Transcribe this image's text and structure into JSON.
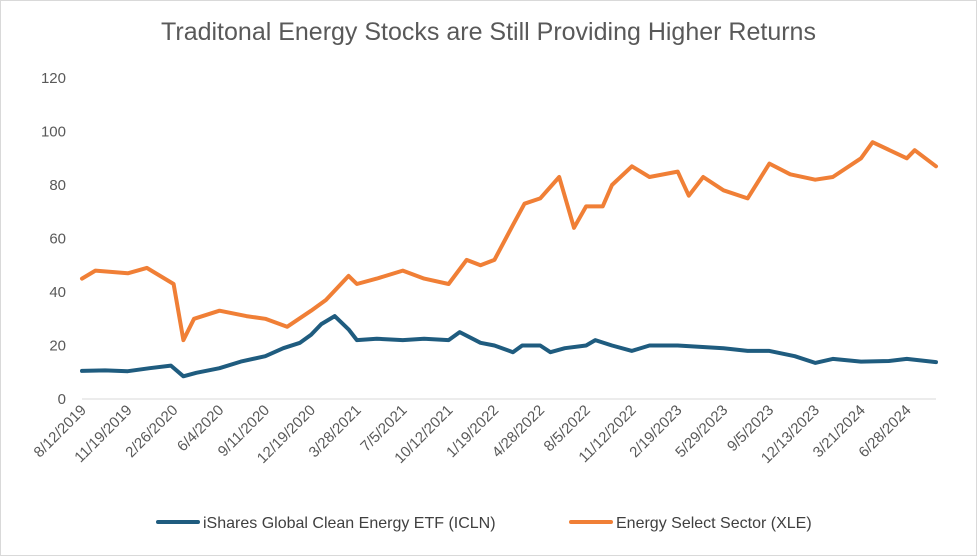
{
  "chart_data": {
    "type": "line",
    "title": "Traditonal Energy Stocks are Still Providing Higher Returns",
    "xlabel": "",
    "ylabel": "",
    "ylim": [
      0,
      120
    ],
    "y_ticks": [
      0,
      20,
      40,
      60,
      80,
      100,
      120
    ],
    "x_tick_labels": [
      "8/12/2019",
      "11/19/2019",
      "2/26/2020",
      "6/4/2020",
      "9/11/2020",
      "12/19/2020",
      "3/28/2021",
      "7/5/2021",
      "10/12/2021",
      "1/19/2022",
      "4/28/2022",
      "8/5/2022",
      "11/12/2022",
      "2/19/2023",
      "5/29/2023",
      "9/5/2023",
      "12/13/2023",
      "3/21/2024",
      "6/28/2024"
    ],
    "x_ticks": [
      "2019-08-12",
      "2019-11-19",
      "2020-02-26",
      "2020-06-04",
      "2020-09-11",
      "2020-12-19",
      "2021-03-28",
      "2021-07-05",
      "2021-10-12",
      "2022-01-19",
      "2022-04-28",
      "2022-08-05",
      "2022-11-12",
      "2023-02-19",
      "2023-05-29",
      "2023-09-05",
      "2023-12-13",
      "2024-03-21",
      "2024-06-28"
    ],
    "xlim": [
      "2019-08-12",
      "2024-08-30"
    ],
    "grid": false,
    "legend_position": "bottom",
    "colors": {
      "ICLN": "#1f5c7f",
      "XLE": "#f07f36"
    },
    "series": [
      {
        "name": "iShares Global Clean Energy ETF (ICLN)",
        "key": "ICLN",
        "x": [
          "2019-08-12",
          "2019-10-01",
          "2019-11-19",
          "2020-01-05",
          "2020-02-20",
          "2020-03-18",
          "2020-04-15",
          "2020-06-04",
          "2020-07-20",
          "2020-09-11",
          "2020-10-20",
          "2020-11-25",
          "2020-12-19",
          "2021-01-10",
          "2021-02-08",
          "2021-03-10",
          "2021-03-28",
          "2021-05-10",
          "2021-07-05",
          "2021-08-20",
          "2021-10-12",
          "2021-11-05",
          "2021-12-20",
          "2022-01-19",
          "2022-02-28",
          "2022-03-20",
          "2022-04-28",
          "2022-05-20",
          "2022-06-20",
          "2022-08-05",
          "2022-08-25",
          "2022-09-30",
          "2022-11-12",
          "2022-12-20",
          "2023-02-19",
          "2023-05-29",
          "2023-07-20",
          "2023-09-05",
          "2023-10-30",
          "2023-12-13",
          "2024-01-20",
          "2024-03-21",
          "2024-05-20",
          "2024-06-28",
          "2024-08-30"
        ],
        "y": [
          10.5,
          10.7,
          10.4,
          11.5,
          12.5,
          8.5,
          9.8,
          11.5,
          14,
          16,
          19,
          21,
          24,
          28,
          31,
          26,
          22,
          22.5,
          22,
          22.5,
          22,
          25,
          21,
          20,
          17.5,
          20,
          20,
          17.5,
          19,
          20,
          22,
          20,
          18,
          20,
          20,
          19,
          18,
          18,
          16,
          13.5,
          15,
          14,
          14.2,
          15,
          13.8
        ]
      },
      {
        "name": "Energy Select Sector (XLE)",
        "key": "XLE",
        "x": [
          "2019-08-12",
          "2019-09-10",
          "2019-11-19",
          "2019-12-30",
          "2020-02-26",
          "2020-03-18",
          "2020-04-10",
          "2020-06-04",
          "2020-08-01",
          "2020-09-11",
          "2020-10-28",
          "2020-12-19",
          "2021-01-20",
          "2021-03-10",
          "2021-03-28",
          "2021-05-10",
          "2021-07-05",
          "2021-08-20",
          "2021-10-12",
          "2021-11-20",
          "2021-12-20",
          "2022-01-19",
          "2022-02-28",
          "2022-03-25",
          "2022-04-28",
          "2022-06-08",
          "2022-07-10",
          "2022-08-05",
          "2022-09-10",
          "2022-09-30",
          "2022-11-12",
          "2022-12-20",
          "2023-02-19",
          "2023-03-15",
          "2023-04-15",
          "2023-05-29",
          "2023-07-20",
          "2023-09-05",
          "2023-10-20",
          "2023-12-13",
          "2024-01-20",
          "2024-03-21",
          "2024-04-15",
          "2024-06-28",
          "2024-07-15",
          "2024-08-30"
        ],
        "y": [
          45,
          48,
          47,
          49,
          43,
          22,
          30,
          33,
          31,
          30,
          27,
          33,
          37,
          46,
          43,
          45,
          48,
          45,
          43,
          52,
          50,
          52,
          65,
          73,
          75,
          83,
          64,
          72,
          72,
          80,
          87,
          83,
          85,
          76,
          83,
          78,
          75,
          88,
          84,
          82,
          83,
          90,
          96,
          90,
          93,
          87
        ]
      }
    ]
  }
}
